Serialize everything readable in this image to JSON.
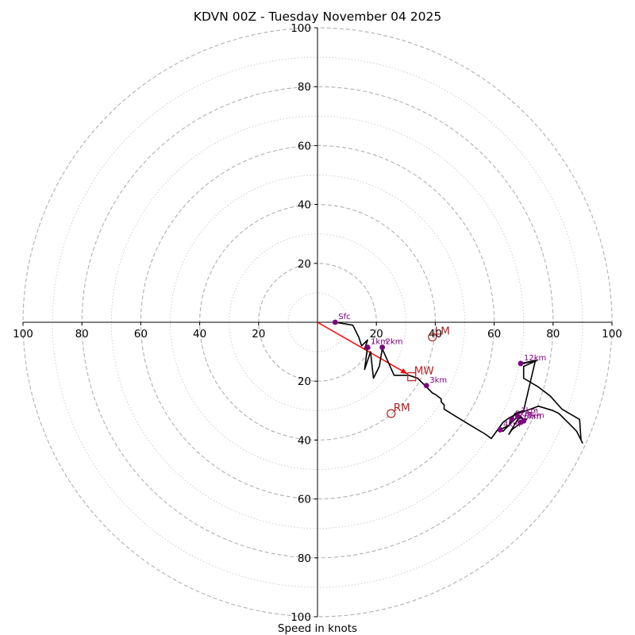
{
  "chart_data": {
    "type": "hodograph",
    "title": "KDVN 00Z - Tuesday November 04 2025",
    "xlabel": "Speed in knots",
    "range": [
      -100,
      100
    ],
    "ring_step_major": 20,
    "ring_step_minor": 10,
    "tick_labels_x": [
      "100",
      "80",
      "60",
      "40",
      "20",
      "20",
      "40",
      "60",
      "80",
      "100"
    ],
    "tick_values_x": [
      -100,
      -80,
      -60,
      -40,
      -20,
      20,
      40,
      60,
      80,
      100
    ],
    "tick_labels_y": [
      "100",
      "80",
      "60",
      "40",
      "20",
      "20",
      "40",
      "60",
      "80",
      "100"
    ],
    "tick_values_y": [
      100,
      80,
      60,
      40,
      20,
      -20,
      -40,
      -60,
      -80,
      -100
    ],
    "trace": [
      [
        6,
        0
      ],
      [
        12,
        -1
      ],
      [
        14,
        -5
      ],
      [
        15,
        -8
      ],
      [
        17,
        -6
      ],
      [
        16,
        -9
      ],
      [
        17,
        -8
      ],
      [
        16,
        -16
      ],
      [
        17,
        -13
      ],
      [
        18,
        -10
      ],
      [
        19,
        -19
      ],
      [
        21,
        -15
      ],
      [
        22,
        -9
      ],
      [
        26,
        -18
      ],
      [
        31,
        -18
      ],
      [
        34,
        -19
      ],
      [
        37,
        -22
      ],
      [
        39,
        -24
      ],
      [
        40,
        -24.5
      ],
      [
        42,
        -26
      ],
      [
        42,
        -27
      ],
      [
        43,
        -28
      ],
      [
        43,
        -29.5
      ],
      [
        47,
        -32
      ],
      [
        52,
        -35
      ],
      [
        57,
        -38
      ],
      [
        59,
        -39.5
      ],
      [
        63,
        -34
      ],
      [
        65,
        -32.5
      ],
      [
        68,
        -31
      ],
      [
        71,
        -30
      ],
      [
        75,
        -28.5
      ],
      [
        80,
        -30
      ],
      [
        82,
        -31
      ],
      [
        85,
        -34
      ],
      [
        88,
        -37
      ],
      [
        90,
        -41
      ],
      [
        89.5,
        -40
      ],
      [
        89,
        -33
      ],
      [
        83,
        -29.5
      ],
      [
        79,
        -25
      ],
      [
        75,
        -22
      ],
      [
        70,
        -19
      ],
      [
        70,
        -15
      ],
      [
        74.5,
        -13
      ],
      [
        70,
        -14
      ],
      [
        69,
        -14
      ],
      [
        74,
        -13
      ],
      [
        70,
        -30
      ],
      [
        67,
        -31
      ],
      [
        66,
        -33
      ],
      [
        65,
        -35
      ],
      [
        63,
        -37
      ],
      [
        62,
        -36.5
      ],
      [
        65,
        -35
      ],
      [
        66,
        -34
      ],
      [
        67,
        -33
      ],
      [
        68.5,
        -31.5
      ],
      [
        69.5,
        -32.5
      ],
      [
        70,
        -33.5
      ],
      [
        68,
        -35
      ],
      [
        66,
        -36.5
      ],
      [
        65,
        -38
      ],
      [
        66.5,
        -35.5
      ],
      [
        68,
        -33
      ],
      [
        69,
        -32.5
      ],
      [
        71,
        -33
      ],
      [
        70,
        -34
      ],
      [
        68,
        -33.5
      ]
    ],
    "height_markers": [
      {
        "label": "Sfc",
        "u": 6,
        "v": 0
      },
      {
        "label": "1km",
        "u": 17,
        "v": -8.5
      },
      {
        "label": "2km",
        "u": 22,
        "v": -8.5
      },
      {
        "label": "3km",
        "u": 37,
        "v": -21.5
      },
      {
        "label": "4km",
        "u": 62,
        "v": -36.5
      },
      {
        "label": "5km",
        "u": 66,
        "v": -33
      },
      {
        "label": "6km",
        "u": 69,
        "v": -34
      },
      {
        "label": "7km",
        "u": 68,
        "v": -32
      },
      {
        "label": "8km",
        "u": 70,
        "v": -33.5
      },
      {
        "label": "12km",
        "u": 69,
        "v": -14
      }
    ],
    "storm_motion": [
      {
        "label": "LM",
        "u": 39,
        "v": -5,
        "marker": "circle"
      },
      {
        "label": "MW",
        "u": 32,
        "v": -18.5,
        "marker": "square"
      },
      {
        "label": "RM",
        "u": 25,
        "v": -31,
        "marker": "circle"
      }
    ],
    "shear_vector": {
      "from": [
        0,
        0
      ],
      "to": [
        30.5,
        -17.5
      ]
    },
    "colors": {
      "trace": "#000000",
      "markers": "#800080",
      "storm_motion": "#b22222",
      "shear_vector": "#ff0000",
      "rings": "#b0b0b0",
      "minor_rings": "#c8c8c8"
    }
  }
}
